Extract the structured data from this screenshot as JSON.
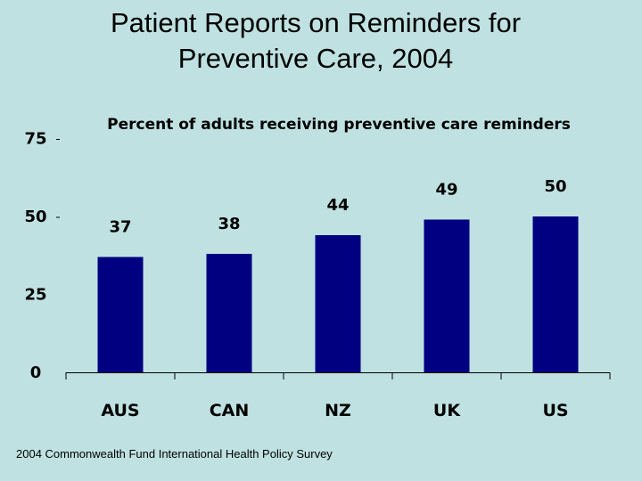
{
  "title_line1": "Patient Reports on Reminders for",
  "title_line2": "Preventive Care, 2004",
  "source": "2004 Commonwealth Fund International Health Policy Survey",
  "colors": {
    "bar": "#000080",
    "background": "#bfe1e1",
    "axis": "#000000"
  },
  "chart_data": {
    "type": "bar",
    "title": "Percent of adults receiving preventive care reminders",
    "categories": [
      "AUS",
      "CAN",
      "NZ",
      "UK",
      "US"
    ],
    "values": [
      37,
      38,
      44,
      49,
      50
    ],
    "data_labels": [
      "37",
      "38",
      "44",
      "49",
      "50"
    ],
    "yticks": [
      "0",
      "25",
      "50",
      "75"
    ],
    "ylim": [
      0,
      75
    ],
    "grid": false,
    "legend": "none"
  }
}
